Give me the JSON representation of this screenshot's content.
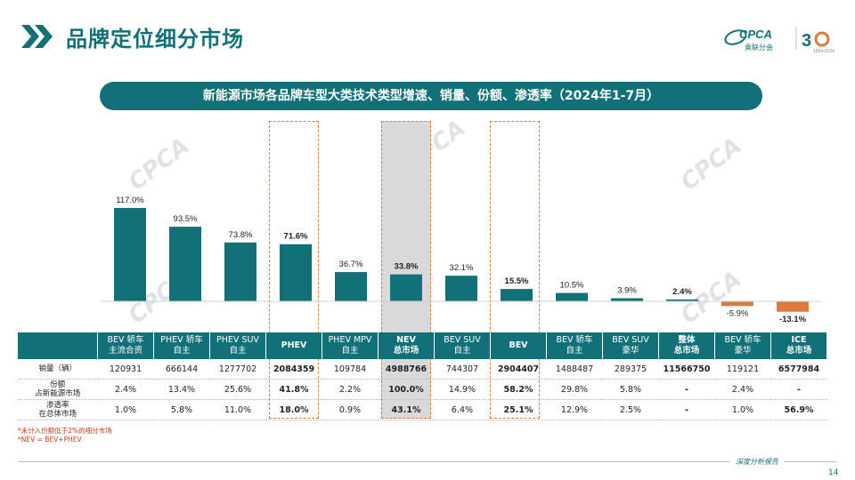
{
  "header": {
    "title": "品牌定位细分市场"
  },
  "logo": {
    "brand": "CPCA",
    "brand_cn": "乘联分会",
    "anniversary": "30",
    "anniversary_sub": "1994-2024"
  },
  "banner": {
    "title": "新能源市场各品牌车型大类技术类型增速、销量、份额、渗透率（2024年1-7月）"
  },
  "colors": {
    "teal": "#127078",
    "orange": "#e07a3a"
  },
  "chart_data": {
    "type": "bar",
    "categories": [
      "BEV 轿车 主流合资",
      "PHEV 轿车 自主",
      "PHEV SUV 自主",
      "PHEV",
      "PHEV MPV 自主",
      "NEV 总市场",
      "BEV SUV 自主",
      "BEV",
      "BEV 轿车 自主",
      "BEV SUV 豪华",
      "整体 总市场",
      "BEV 轿车 豪华",
      "ICE 总市场"
    ],
    "values": [
      117.0,
      93.5,
      73.8,
      71.6,
      36.7,
      33.8,
      32.1,
      15.5,
      10.5,
      3.9,
      2.4,
      -5.9,
      -13.1
    ],
    "labels": [
      "117.0%",
      "93.5%",
      "73.8%",
      "71.6%",
      "36.7%",
      "33.8%",
      "32.1%",
      "15.5%",
      "10.5%",
      "3.9%",
      "2.4%",
      "-5.9%",
      "-13.1%"
    ],
    "bold_labels": [
      3,
      5,
      7,
      10,
      12
    ],
    "colors": [
      "#127078",
      "#127078",
      "#127078",
      "#127078",
      "#127078",
      "#127078",
      "#127078",
      "#127078",
      "#127078",
      "#127078",
      "#127078",
      "#e07a3a",
      "#e07a3a"
    ],
    "highlighted": [
      3,
      5,
      7
    ],
    "ylim": [
      -15,
      120
    ]
  },
  "table": {
    "headers": [
      "BEV 轿车\n主流合资",
      "PHEV 轿车\n自主",
      "PHEV SUV\n自主",
      "PHEV",
      "PHEV MPV\n自主",
      "NEV\n总市场",
      "BEV SUV\n自主",
      "BEV",
      "BEV 轿车\n自主",
      "BEV SUV\n豪华",
      "整体\n总市场",
      "BEV 轿车\n豪华",
      "ICE\n总市场"
    ],
    "rows": [
      {
        "label": "销量（辆）",
        "values": [
          "120931",
          "666144",
          "1277702",
          "2084359",
          "109784",
          "4988766",
          "744307",
          "2904407",
          "1488487",
          "289375",
          "11566750",
          "119121",
          "6577984"
        ]
      },
      {
        "label": "份额\n占新能源市场",
        "values": [
          "2.4%",
          "13.4%",
          "25.6%",
          "41.8%",
          "2.2%",
          "100.0%",
          "14.9%",
          "58.2%",
          "29.8%",
          "5.8%",
          "-",
          "2.4%",
          "-"
        ]
      },
      {
        "label": "渗透率\n在总体市场",
        "values": [
          "1.0%",
          "5.8%",
          "11.0%",
          "18.0%",
          "0.9%",
          "43.1%",
          "6.4%",
          "25.1%",
          "12.9%",
          "2.5%",
          "-",
          "1.0%",
          "56.9%"
        ]
      }
    ],
    "bold_cols": [
      3,
      5,
      7,
      10,
      12
    ]
  },
  "notes": [
    "*未计入份额低于2%的细分市场",
    "*NEV = BEV+PHEV"
  ],
  "footer": {
    "tagline": "深度分析报告",
    "page": "14"
  }
}
